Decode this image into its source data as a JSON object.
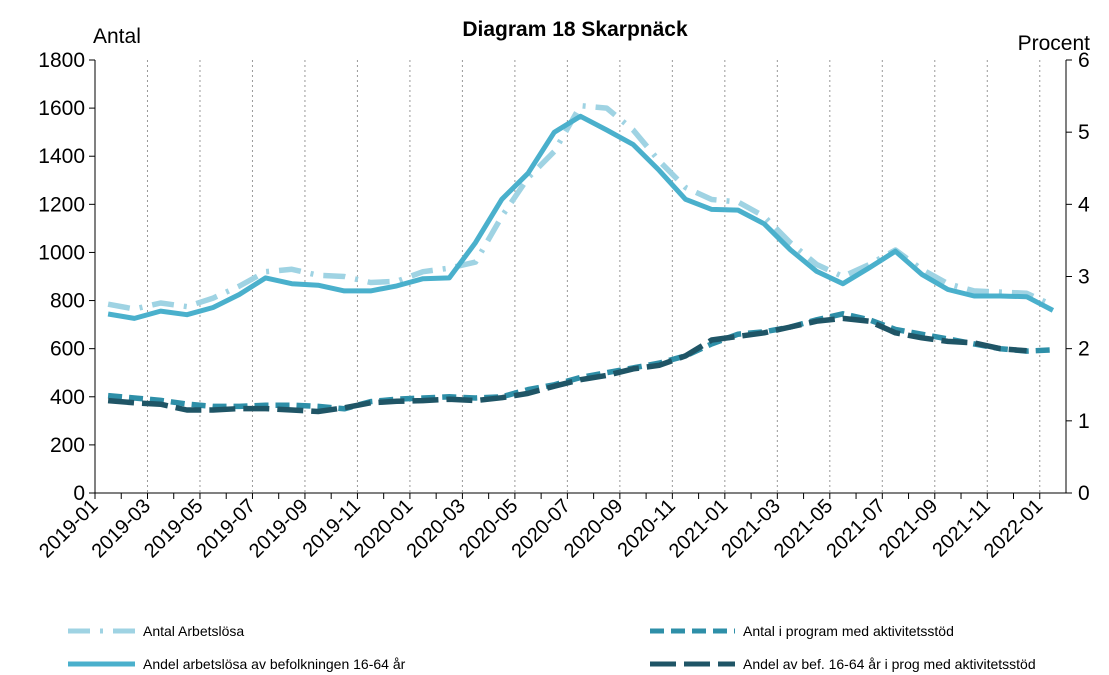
{
  "chart_data": {
    "type": "line",
    "title": "Diagram 18 Skarpnäck",
    "y_label": "Antal",
    "y2_label": "Procent",
    "categories": [
      "2019-01",
      null,
      "2019-03",
      null,
      "2019-05",
      null,
      "2019-07",
      null,
      "2019-09",
      null,
      "2019-11",
      null,
      "2020-01",
      null,
      "2020-03",
      null,
      "2020-05",
      null,
      "2020-07",
      null,
      "2020-09",
      null,
      "2020-11",
      null,
      "2021-01",
      null,
      "2021-03",
      null,
      "2021-05",
      null,
      "2021-07",
      null,
      "2021-09",
      null,
      "2021-11",
      null,
      "2022-01"
    ],
    "ylim": [
      0,
      1800
    ],
    "yticks": [
      0,
      200,
      400,
      600,
      800,
      1000,
      1200,
      1400,
      1600,
      1800
    ],
    "y2lim": [
      0,
      6
    ],
    "y2ticks": [
      0,
      1,
      2,
      3,
      4,
      5,
      6
    ],
    "grid": "x",
    "series": [
      {
        "name": "Antal Arbetslösa",
        "color": "#9fd3e3",
        "dash": "dashdot",
        "axis": "y",
        "values": [
          785,
          765,
          790,
          775,
          810,
          860,
          920,
          930,
          905,
          900,
          875,
          880,
          920,
          935,
          960,
          1150,
          1310,
          1420,
          1610,
          1600,
          1510,
          1380,
          1270,
          1220,
          1210,
          1150,
          1040,
          950,
          900,
          950,
          1010,
          930,
          870,
          840,
          835,
          830,
          780
        ]
      },
      {
        "name": "Antal i program med aktivitetsstöd",
        "color": "#2e8fa8",
        "dash": "dashed",
        "axis": "y",
        "values": [
          405,
          395,
          385,
          370,
          360,
          360,
          365,
          365,
          360,
          350,
          380,
          390,
          395,
          400,
          395,
          400,
          430,
          450,
          480,
          500,
          520,
          540,
          570,
          620,
          660,
          670,
          690,
          720,
          745,
          720,
          680,
          660,
          640,
          620,
          600,
          590,
          595
        ]
      },
      {
        "name": "Andel arbetslösa av befolkningen 16-64 år",
        "color": "#4ab0cc",
        "dash": "solid",
        "axis": "y2",
        "values": [
          2.48,
          2.42,
          2.52,
          2.47,
          2.57,
          2.75,
          2.98,
          2.9,
          2.88,
          2.8,
          2.8,
          2.87,
          2.97,
          2.98,
          3.47,
          4.07,
          4.43,
          5.0,
          5.22,
          5.03,
          4.83,
          4.47,
          4.07,
          3.93,
          3.92,
          3.73,
          3.37,
          3.07,
          2.9,
          3.12,
          3.35,
          3.03,
          2.82,
          2.73,
          2.73,
          2.72,
          2.53
        ]
      },
      {
        "name": "Andel av bef. 16-64 år i prog med aktivitetsstöd",
        "color": "#1f5566",
        "dash": "longdash",
        "axis": "y2",
        "values": [
          1.28,
          1.25,
          1.23,
          1.15,
          1.15,
          1.17,
          1.17,
          1.15,
          1.13,
          1.18,
          1.25,
          1.27,
          1.28,
          1.3,
          1.28,
          1.32,
          1.38,
          1.48,
          1.57,
          1.63,
          1.72,
          1.77,
          1.9,
          2.12,
          2.17,
          2.22,
          2.3,
          2.38,
          2.42,
          2.38,
          2.22,
          2.15,
          2.1,
          2.08,
          2.0,
          1.97,
          null
        ]
      }
    ]
  }
}
